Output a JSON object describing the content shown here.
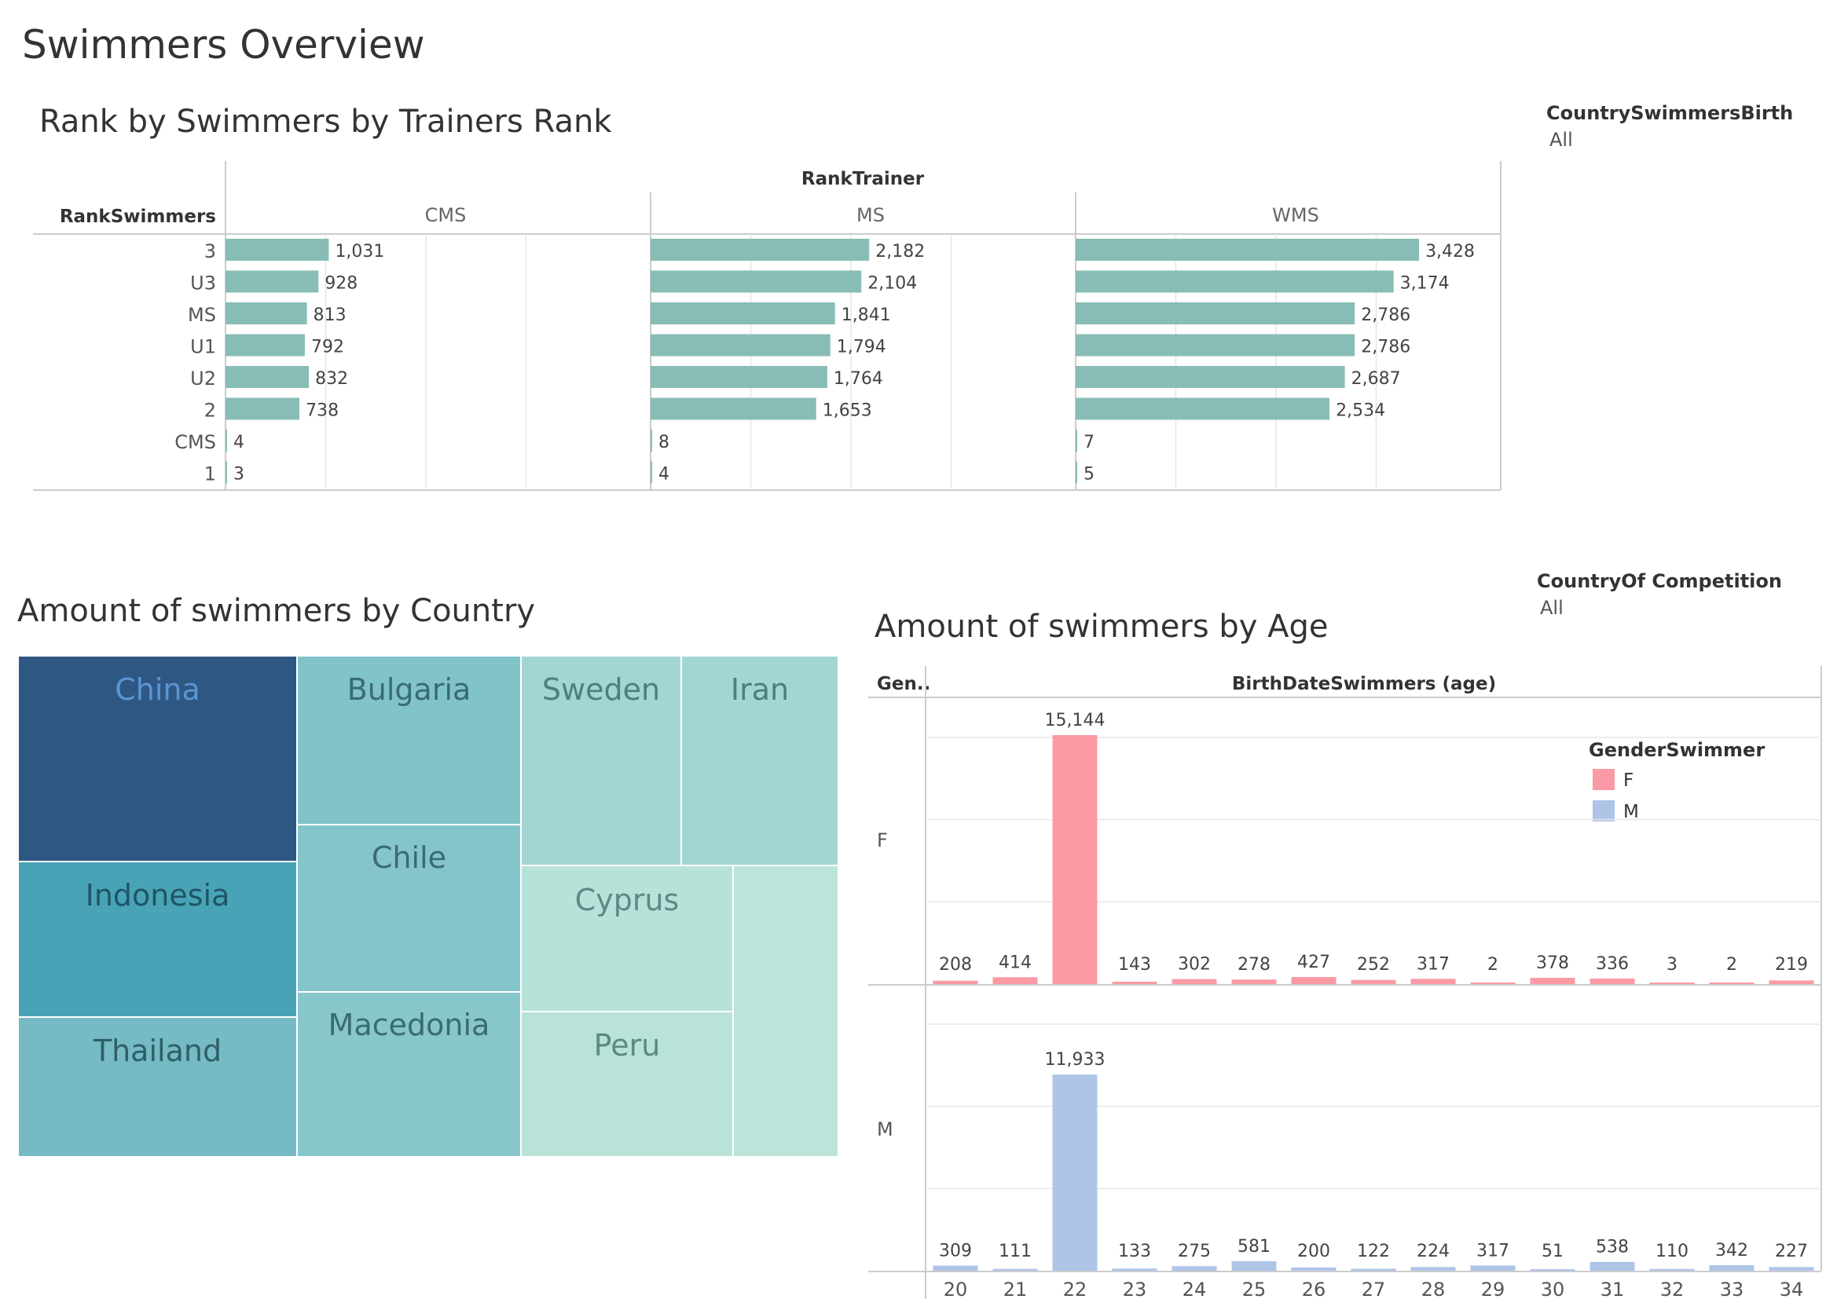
{
  "dashboard": {
    "title": "Swimmers Overview"
  },
  "filters": [
    {
      "label": "CountrySwimmersBirth",
      "value": "All"
    },
    {
      "label": "CountryOf Competition",
      "value": "All"
    }
  ],
  "colors": {
    "teal_bar": "#88bdb6",
    "female": "#fb9aa4",
    "male": "#aec5e8",
    "gridline": "#e6e6e6",
    "axis": "#cccccc"
  },
  "chart_data": [
    {
      "type": "bar",
      "orientation": "horizontal",
      "title": "Rank by Swimmers by Trainers Rank",
      "row_header": "RankSwimmers",
      "column_header": "RankTrainer",
      "categories": [
        "3",
        "U3",
        "MS",
        "U1",
        "U2",
        "2",
        "CMS",
        "1"
      ],
      "series": [
        {
          "name": "CMS",
          "values": [
            1031,
            928,
            813,
            792,
            832,
            738,
            4,
            3
          ],
          "labels": [
            "1,031",
            "928",
            "813",
            "792",
            "832",
            "738",
            "4",
            "3"
          ]
        },
        {
          "name": "MS",
          "values": [
            2182,
            2104,
            1841,
            1794,
            1764,
            1653,
            8,
            4
          ],
          "labels": [
            "2,182",
            "2,104",
            "1,841",
            "1,794",
            "1,764",
            "1,653",
            "8",
            "4"
          ]
        },
        {
          "name": "WMS",
          "values": [
            3428,
            3174,
            2786,
            2786,
            2687,
            2534,
            7,
            5
          ],
          "labels": [
            "3,428",
            "3,174",
            "2,786",
            "2,786",
            "2,687",
            "2,534",
            "7",
            "5"
          ]
        }
      ],
      "xlim": [
        0,
        4000
      ],
      "grid": true
    },
    {
      "type": "treemap",
      "title": "Amount of swimmers by Country",
      "items": [
        {
          "name": "China",
          "label": "China",
          "color": "#2e5883",
          "label_color": "#5b95d4"
        },
        {
          "name": "Indonesia",
          "label": "Indonesia",
          "color": "#49a3b7",
          "label_color": "#1f5566"
        },
        {
          "name": "Thailand",
          "label": "Thailand",
          "color": "#75bac4",
          "label_color": "#2e5f66"
        },
        {
          "name": "Bulgaria",
          "label": "Bulgaria",
          "color": "#80c3c9",
          "label_color": "#3a6b72"
        },
        {
          "name": "Chile",
          "label": "Chile",
          "color": "#83c5cb",
          "label_color": "#3a6b72"
        },
        {
          "name": "Macedonia",
          "label": "Macedonia",
          "color": "#87c7cc",
          "label_color": "#3a6b72"
        },
        {
          "name": "Sweden",
          "label": "Sweden",
          "color": "#a3d6d2",
          "label_color": "#4d7f7c"
        },
        {
          "name": "Iran",
          "label": "Iran",
          "color": "#a3d6d2",
          "label_color": "#4d7f7c"
        },
        {
          "name": "Cyprus",
          "label": "Cyprus",
          "color": "#b7e2d9",
          "label_color": "#5a8a84"
        },
        {
          "name": "Peru",
          "label": "Peru",
          "color": "#b9e2d9",
          "label_color": "#5a8a84"
        },
        {
          "name": "other",
          "label": "",
          "color": "#bde4da",
          "label_color": "#5a8a84"
        }
      ]
    },
    {
      "type": "bar",
      "title": "Amount of swimmers by Age",
      "row_header": "Gen..",
      "column_header": "BirthDateSwimmers (age)",
      "legend_title": "GenderSwimmer",
      "legend_position": "top-right",
      "categories": [
        "20",
        "21",
        "22",
        "23",
        "24",
        "25",
        "26",
        "27",
        "28",
        "29",
        "30",
        "31",
        "32",
        "33",
        "34"
      ],
      "series": [
        {
          "name": "F",
          "values": [
            208,
            414,
            15144,
            143,
            302,
            278,
            427,
            252,
            317,
            2,
            378,
            336,
            3,
            2,
            219
          ],
          "labels": [
            "208",
            "414",
            "15,144",
            "143",
            "302",
            "278",
            "427",
            "252",
            "317",
            "2",
            "378",
            "336",
            "3",
            "2",
            "219"
          ]
        },
        {
          "name": "M",
          "values": [
            309,
            111,
            11933,
            133,
            275,
            581,
            200,
            122,
            224,
            317,
            51,
            538,
            110,
            342,
            227
          ],
          "labels": [
            "309",
            "111",
            "11,933",
            "133",
            "275",
            "581",
            "200",
            "122",
            "224",
            "317",
            "51",
            "538",
            "110",
            "342",
            "227"
          ]
        }
      ],
      "grid": true
    }
  ]
}
